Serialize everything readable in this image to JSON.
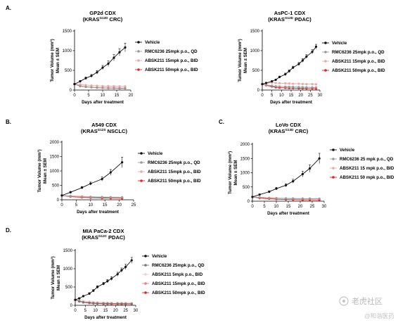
{
  "panels": {
    "A": "A.",
    "B": "B.",
    "C": "C.",
    "D": "D."
  },
  "legend_common": {
    "vehicle": "Vehicle"
  },
  "watermark": {
    "main": "老虎社区",
    "sub": "@和谐医药"
  },
  "chart_data": [
    {
      "id": "gp2d",
      "type": "line",
      "panel": "A.",
      "title_line1": "GP2d CDX",
      "title_pre": "(KRAS",
      "title_sup": "G12D",
      "title_post": " CRC)",
      "xlabel": "Days after treatment",
      "ylabel_line1": "Tumor Volume (mm³)",
      "ylabel_line2": "Mean ± SEM",
      "xlim": [
        0,
        20
      ],
      "ylim": [
        0,
        1500
      ],
      "xticks": [
        0,
        5,
        10,
        15,
        20
      ],
      "yticks": [
        0,
        500,
        1000,
        1500
      ],
      "series": [
        {
          "name": "Vehicle",
          "color": "#111111",
          "marker": "circle",
          "x": [
            0,
            2,
            4,
            6,
            8,
            10,
            12,
            14,
            16,
            18
          ],
          "y": [
            150,
            220,
            300,
            360,
            450,
            570,
            670,
            820,
            960,
            1080
          ],
          "err": [
            20,
            25,
            30,
            35,
            45,
            55,
            70,
            80,
            90,
            110
          ]
        },
        {
          "name": "RMC6236 25mpk p.o., QD",
          "color": "#9a9a9a",
          "marker": "circle",
          "x": [
            0,
            2,
            4,
            6,
            8,
            10,
            12,
            14,
            16,
            18
          ],
          "y": [
            150,
            105,
            80,
            70,
            62,
            58,
            55,
            52,
            50,
            50
          ],
          "err": [
            10,
            10,
            8,
            8,
            7,
            7,
            6,
            6,
            6,
            6
          ]
        },
        {
          "name": "ABSK211 15mpk p.o., BID",
          "color": "#f2a7a7",
          "marker": "circle",
          "x": [
            0,
            2,
            4,
            6,
            8,
            10,
            12,
            14,
            16,
            18
          ],
          "y": [
            150,
            140,
            125,
            115,
            108,
            100,
            100,
            98,
            95,
            95
          ],
          "err": [
            12,
            12,
            10,
            10,
            10,
            10,
            10,
            10,
            10,
            10
          ]
        },
        {
          "name": "ABSK211 50mpk p.o., BID",
          "color": "#e52222",
          "marker": "circle",
          "x": [
            0,
            2,
            4,
            6,
            8,
            10,
            12,
            14,
            16,
            18
          ],
          "y": [
            150,
            100,
            80,
            70,
            60,
            55,
            50,
            48,
            45,
            45
          ],
          "err": [
            10,
            10,
            8,
            8,
            7,
            6,
            6,
            6,
            6,
            6
          ]
        }
      ]
    },
    {
      "id": "aspc1",
      "type": "line",
      "panel": "",
      "title_line1": "AsPC-1 CDX",
      "title_pre": "(KRAS",
      "title_sup": "G12D",
      "title_post": " PDAC)",
      "xlabel": "Days after treatment",
      "ylabel_line1": "Tumor Volume (mm³)",
      "ylabel_line2": "Mean ± SEM",
      "xlim": [
        0,
        30
      ],
      "ylim": [
        0,
        1500
      ],
      "xticks": [
        0,
        5,
        10,
        15,
        20,
        25,
        30
      ],
      "yticks": [
        0,
        500,
        1000,
        1500
      ],
      "series": [
        {
          "name": "Vehicle",
          "color": "#111111",
          "marker": "circle",
          "x": [
            0,
            2,
            5,
            7,
            9,
            12,
            14,
            16,
            19,
            21,
            23,
            26,
            28
          ],
          "y": [
            150,
            180,
            220,
            260,
            330,
            400,
            480,
            570,
            660,
            750,
            850,
            970,
            1100
          ],
          "err": [
            15,
            15,
            20,
            20,
            25,
            30,
            30,
            35,
            40,
            45,
            50,
            55,
            60
          ]
        },
        {
          "name": "RMC6236 25mpk p.o., QD",
          "color": "#9a9a9a",
          "marker": "circle",
          "x": [
            0,
            2,
            5,
            7,
            9,
            12,
            14,
            16,
            19,
            21,
            23,
            26,
            28
          ],
          "y": [
            150,
            130,
            110,
            95,
            90,
            85,
            80,
            78,
            75,
            72,
            70,
            68,
            65
          ],
          "err": [
            10,
            10,
            8,
            8,
            8,
            7,
            7,
            7,
            6,
            6,
            6,
            6,
            6
          ]
        },
        {
          "name": "ABSK211 15mpk p.o., BID",
          "color": "#f2a7a7",
          "marker": "circle",
          "x": [
            0,
            2,
            5,
            7,
            9,
            12,
            14,
            16,
            19,
            21,
            23,
            26,
            28
          ],
          "y": [
            150,
            170,
            190,
            180,
            175,
            170,
            165,
            160,
            160,
            155,
            150,
            150,
            145
          ],
          "err": [
            12,
            12,
            12,
            12,
            12,
            12,
            12,
            12,
            12,
            12,
            12,
            12,
            12
          ]
        },
        {
          "name": "ABSK211 50mpk p.o., BID",
          "color": "#e52222",
          "marker": "circle",
          "x": [
            0,
            2,
            5,
            7,
            9,
            12,
            14,
            16,
            19,
            21,
            23,
            26,
            28
          ],
          "y": [
            150,
            120,
            90,
            70,
            60,
            55,
            50,
            48,
            45,
            42,
            40,
            40,
            38
          ],
          "err": [
            10,
            10,
            8,
            8,
            7,
            6,
            6,
            6,
            6,
            6,
            6,
            6,
            6
          ]
        }
      ]
    },
    {
      "id": "a549",
      "type": "line",
      "panel": "B.",
      "title_line1": "A549 CDX",
      "title_pre": "(KRAS",
      "title_sup": "G12S",
      "title_post": " NSCLC)",
      "xlabel": "Days after treatment",
      "ylabel_line1": "Tumor Volume (mm³)",
      "ylabel_line2": "Mean ± SEM",
      "xlim": [
        0,
        25
      ],
      "ylim": [
        0,
        2000
      ],
      "xticks": [
        0,
        5,
        10,
        15,
        20,
        25
      ],
      "yticks": [
        0,
        500,
        1000,
        1500,
        2000
      ],
      "series": [
        {
          "name": "Vehicle",
          "color": "#111111",
          "marker": "circle",
          "x": [
            0,
            3,
            7,
            10,
            14,
            17,
            21
          ],
          "y": [
            150,
            260,
            420,
            560,
            720,
            950,
            1300
          ],
          "err": [
            20,
            30,
            40,
            55,
            70,
            100,
            180
          ]
        },
        {
          "name": "RMC6236 25mpk p.o., QD",
          "color": "#9a9a9a",
          "marker": "circle",
          "x": [
            0,
            3,
            7,
            10,
            14,
            17,
            21
          ],
          "y": [
            150,
            120,
            100,
            90,
            85,
            80,
            80
          ],
          "err": [
            12,
            10,
            10,
            9,
            9,
            8,
            8
          ]
        },
        {
          "name": "ABSK211 15mpk p.o., BID",
          "color": "#f2a7a7",
          "marker": "circle",
          "x": [
            0,
            3,
            7,
            10,
            14,
            17,
            21
          ],
          "y": [
            150,
            140,
            120,
            110,
            100,
            95,
            90
          ],
          "err": [
            12,
            12,
            10,
            10,
            10,
            10,
            10
          ]
        },
        {
          "name": "ABSK211 50mpk p.o., BID",
          "color": "#e52222",
          "marker": "circle",
          "x": [
            0,
            3,
            7,
            10,
            14,
            17,
            21
          ],
          "y": [
            150,
            110,
            85,
            70,
            60,
            55,
            50
          ],
          "err": [
            10,
            10,
            8,
            8,
            7,
            6,
            6
          ]
        }
      ]
    },
    {
      "id": "lovo",
      "type": "line",
      "panel": "C.",
      "title_line1": "LoVo CDX",
      "title_pre": "(KRAS",
      "title_sup": "G13D",
      "title_post": " CRC)",
      "xlabel": "Days after treatment",
      "ylabel_line1": "Tumor Volume (mm³)",
      "ylabel_line2": "Mean ± SEM",
      "xlim": [
        0,
        30
      ],
      "ylim": [
        0,
        2000
      ],
      "xticks": [
        0,
        5,
        10,
        15,
        20,
        25,
        30
      ],
      "yticks": [
        0,
        500,
        1000,
        1500,
        2000
      ],
      "series": [
        {
          "name": "Vehicle",
          "color": "#111111",
          "marker": "circle",
          "x": [
            0,
            3,
            7,
            10,
            14,
            17,
            21,
            24,
            28
          ],
          "y": [
            150,
            230,
            330,
            440,
            560,
            700,
            950,
            1150,
            1500
          ],
          "err": [
            20,
            25,
            35,
            45,
            55,
            70,
            100,
            130,
            180
          ]
        },
        {
          "name": "RMC6236 25 mpk p.o., QD",
          "color": "#9a9a9a",
          "marker": "circle",
          "x": [
            0,
            3,
            7,
            10,
            14,
            17,
            21,
            24,
            28
          ],
          "y": [
            150,
            130,
            110,
            100,
            95,
            90,
            90,
            88,
            85
          ],
          "err": [
            12,
            10,
            10,
            9,
            9,
            9,
            9,
            8,
            8
          ]
        },
        {
          "name": "ABSK211 15 mpk p.o., BID",
          "color": "#f2a7a7",
          "marker": "circle",
          "x": [
            0,
            3,
            7,
            10,
            14,
            17,
            21,
            24,
            28
          ],
          "y": [
            150,
            140,
            120,
            110,
            100,
            100,
            95,
            95,
            90
          ],
          "err": [
            12,
            12,
            10,
            10,
            10,
            10,
            10,
            10,
            10
          ]
        },
        {
          "name": "ABSK211 50 mpk p.o., BID",
          "color": "#e52222",
          "marker": "circle",
          "x": [
            0,
            3,
            7,
            10,
            14,
            17,
            21,
            24,
            28
          ],
          "y": [
            150,
            110,
            85,
            70,
            60,
            55,
            50,
            48,
            45
          ],
          "err": [
            10,
            10,
            8,
            8,
            7,
            6,
            6,
            6,
            6
          ]
        }
      ]
    },
    {
      "id": "miapaca",
      "type": "line",
      "panel": "D.",
      "title_line1": "MIA PaCa-2 CDX",
      "title_pre": "(KRAS",
      "title_sup": "G12C",
      "title_post": " PDAC)",
      "xlabel": "Days after treatment",
      "ylabel_line1": "Tumor Volume (mm³)",
      "ylabel_line2": "Mean ± SEM",
      "xlim": [
        0,
        30
      ],
      "ylim": [
        0,
        1500
      ],
      "xticks": [
        0,
        5,
        10,
        15,
        20,
        25,
        30
      ],
      "yticks": [
        0,
        500,
        1000,
        1500
      ],
      "series": [
        {
          "name": "Vehicle",
          "color": "#111111",
          "marker": "circle",
          "x": [
            0,
            2,
            4,
            7,
            9,
            11,
            14,
            16,
            18,
            21,
            23,
            25,
            28
          ],
          "y": [
            150,
            190,
            250,
            320,
            400,
            500,
            590,
            660,
            730,
            850,
            960,
            1050,
            1230
          ],
          "err": [
            15,
            15,
            20,
            25,
            30,
            35,
            40,
            45,
            50,
            55,
            60,
            70,
            80
          ]
        },
        {
          "name": "RMC6236 25mpk p.o., QD",
          "color": "#777777",
          "marker": "circle",
          "x": [
            0,
            2,
            4,
            7,
            9,
            11,
            14,
            16,
            18,
            21,
            23,
            25,
            28
          ],
          "y": [
            150,
            110,
            85,
            70,
            60,
            55,
            50,
            48,
            46,
            45,
            44,
            43,
            42
          ],
          "err": [
            10,
            10,
            8,
            7,
            6,
            6,
            6,
            5,
            5,
            5,
            5,
            5,
            5
          ]
        },
        {
          "name": "ABSK211 5mpk p.o., BID",
          "color": "#f6cccc",
          "marker": "circle",
          "x": [
            0,
            2,
            4,
            7,
            9,
            11,
            14,
            16,
            18,
            21,
            23,
            25,
            28
          ],
          "y": [
            150,
            140,
            120,
            105,
            95,
            85,
            80,
            78,
            75,
            72,
            70,
            68,
            65
          ],
          "err": [
            12,
            12,
            10,
            10,
            9,
            8,
            8,
            8,
            7,
            7,
            7,
            7,
            7
          ]
        },
        {
          "name": "ABSK211 15mpk p.o., BID",
          "color": "#f08080",
          "marker": "circle",
          "x": [
            0,
            2,
            4,
            7,
            9,
            11,
            14,
            16,
            18,
            21,
            23,
            25,
            28
          ],
          "y": [
            150,
            120,
            95,
            80,
            70,
            62,
            58,
            55,
            52,
            50,
            48,
            47,
            45
          ],
          "err": [
            10,
            10,
            9,
            8,
            7,
            6,
            6,
            6,
            6,
            5,
            5,
            5,
            5
          ]
        },
        {
          "name": "ABSK211 50mpk p.o., BID",
          "color": "#e52222",
          "marker": "circle",
          "x": [
            0,
            2,
            4,
            7,
            9,
            11,
            14,
            16,
            18,
            21,
            23,
            25,
            28
          ],
          "y": [
            150,
            105,
            80,
            62,
            52,
            46,
            42,
            40,
            38,
            36,
            35,
            35,
            34
          ],
          "err": [
            10,
            9,
            8,
            7,
            6,
            5,
            5,
            5,
            5,
            5,
            5,
            5,
            5
          ]
        }
      ]
    }
  ]
}
